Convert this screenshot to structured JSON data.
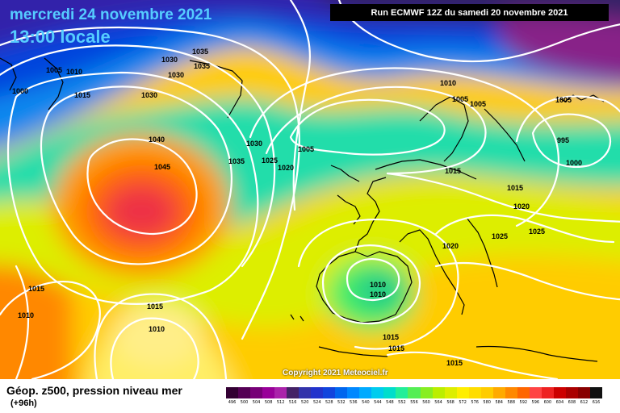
{
  "header": {
    "date_label": "mercredi 24 novembre 2021",
    "local_time_label": "13:00 locale",
    "run_label": "Run ECMWF 12Z du samedi 20 novembre 2021"
  },
  "footer": {
    "parameter_label": "Géop. z500, pression niveau mer",
    "echeance_label": "(+96h)",
    "copyright": "Copyright 2021 Meteociel.fr"
  },
  "colors": {
    "title": "#55ccff",
    "isobar": "#ffffff",
    "coastline": "#000000"
  },
  "legend": {
    "values": [
      "496",
      "500",
      "504",
      "508",
      "512",
      "516",
      "520",
      "524",
      "528",
      "532",
      "536",
      "540",
      "544",
      "548",
      "552",
      "556",
      "560",
      "564",
      "568",
      "572",
      "576",
      "580",
      "584",
      "588",
      "592",
      "596",
      "600",
      "604",
      "608",
      "612",
      "616"
    ],
    "colors": [
      "#330033",
      "#550055",
      "#770077",
      "#990099",
      "#aa22aa",
      "#442266",
      "#3333aa",
      "#2233cc",
      "#1144dd",
      "#0066ee",
      "#0088ff",
      "#00aaff",
      "#00ccee",
      "#00ddcc",
      "#22ee99",
      "#55ee55",
      "#88ee22",
      "#bbee00",
      "#ddee00",
      "#ffee00",
      "#ffdd00",
      "#ffcc00",
      "#ffaa00",
      "#ff8800",
      "#ff6600",
      "#ff4444",
      "#ee2222",
      "#cc0000",
      "#aa0000",
      "#880000",
      "#111111"
    ]
  },
  "isobar_labels": [
    "1005",
    "1010",
    "1000",
    "1015",
    "1030",
    "1035",
    "1035",
    "1030",
    "1030",
    "1040",
    "1045",
    "1030",
    "1035",
    "1025",
    "1020",
    "1005",
    "1010",
    "1005",
    "1005",
    "1005",
    "995",
    "1000",
    "1015",
    "1015",
    "1020",
    "1025",
    "1025",
    "1020",
    "1010",
    "1010",
    "1015",
    "1015",
    "1015",
    "1010",
    "1010",
    "1015",
    "1015"
  ]
}
